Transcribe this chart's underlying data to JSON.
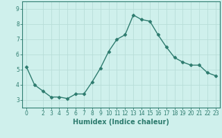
{
  "x": [
    0,
    1,
    2,
    3,
    4,
    5,
    6,
    7,
    8,
    9,
    10,
    11,
    12,
    13,
    14,
    15,
    16,
    17,
    18,
    19,
    20,
    21,
    22,
    23
  ],
  "y": [
    5.2,
    4.0,
    3.6,
    3.2,
    3.2,
    3.1,
    3.4,
    3.4,
    4.2,
    5.1,
    6.2,
    7.0,
    7.3,
    8.6,
    8.3,
    8.2,
    7.3,
    6.5,
    5.8,
    5.5,
    5.3,
    5.3,
    4.8,
    4.6
  ],
  "xlabel": "Humidex (Indice chaleur)",
  "xlim_min": -0.5,
  "xlim_max": 23.5,
  "ylim_min": 2.5,
  "ylim_max": 9.5,
  "yticks": [
    3,
    4,
    5,
    6,
    7,
    8,
    9
  ],
  "xticks": [
    0,
    2,
    3,
    4,
    5,
    6,
    7,
    8,
    9,
    10,
    11,
    12,
    13,
    14,
    15,
    16,
    17,
    18,
    19,
    20,
    21,
    22,
    23
  ],
  "line_color": "#2d7b6e",
  "marker": "D",
  "marker_size": 2.5,
  "bg_color": "#cff0ec",
  "grid_color": "#b8ddd8",
  "axis_color": "#2d7b6e",
  "tick_color": "#2d7b6e",
  "label_color": "#2d7b6e",
  "xlabel_fontsize": 7,
  "tick_fontsize": 5.5,
  "linewidth": 1.0
}
